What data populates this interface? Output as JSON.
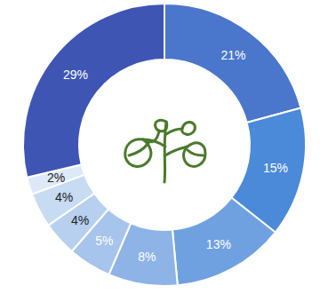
{
  "chart_data": {
    "type": "pie",
    "values": [
      21,
      15,
      13,
      8,
      5,
      4,
      4,
      2,
      29
    ],
    "value_labels": [
      "21%",
      "15%",
      "13%",
      "8%",
      "5%",
      "4%",
      "4%",
      "2%",
      "29%"
    ],
    "colors": [
      "#4a77cc",
      "#4a8ad9",
      "#6fa1e1",
      "#8db3e7",
      "#a6c4ec",
      "#b7d0ef",
      "#c7dbf3",
      "#dde9f8",
      "#3e55b4"
    ],
    "data_labels": true
  }
}
